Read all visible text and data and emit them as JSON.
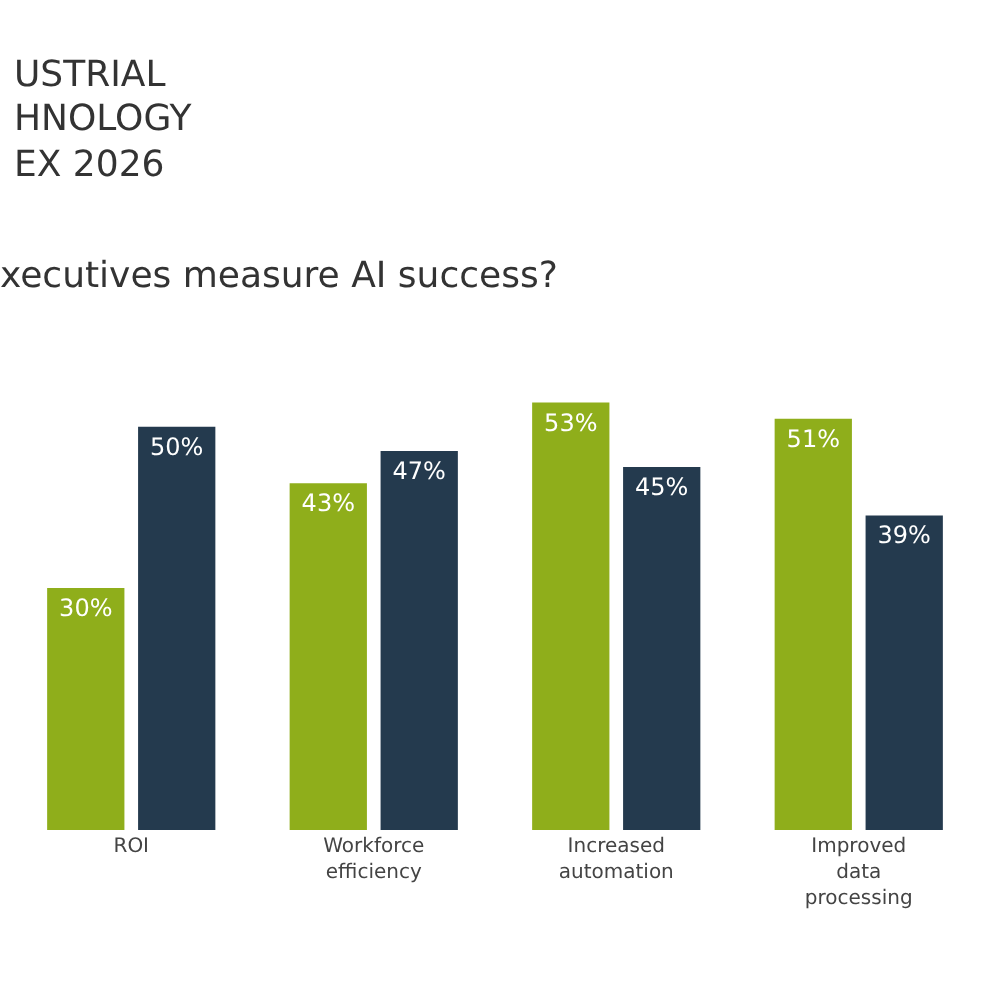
{
  "chart_data": {
    "type": "bar",
    "title": "xecutives measure AI success?",
    "annotations": [
      "USTRIAL",
      "HNOLOGY",
      "EX 2026"
    ],
    "categories": [
      "ROI",
      "Workforce efficiency",
      "Increased automation",
      "Improved data processing"
    ],
    "series": [
      {
        "color": "#8fae1b",
        "values": [
          30,
          43,
          53,
          51
        ],
        "value_labels": [
          "30%",
          "43%",
          "53%",
          "51%"
        ]
      },
      {
        "color": "#243a4e",
        "values": [
          50,
          47,
          45,
          39
        ],
        "value_labels": [
          "50%",
          "47%",
          "45%",
          "39%"
        ]
      }
    ],
    "legend": false,
    "tick_labels": "x"
  }
}
